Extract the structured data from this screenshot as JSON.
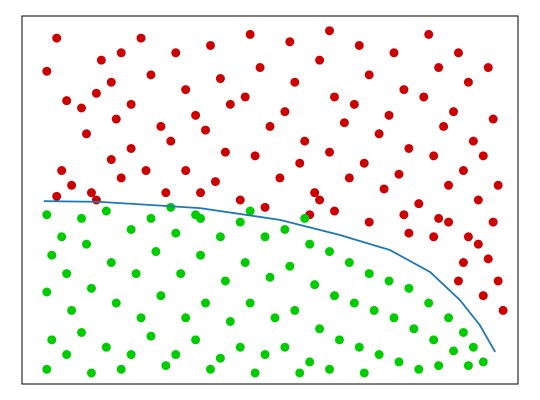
{
  "chart_data": {
    "type": "scatter",
    "xlim": [
      0,
      100
    ],
    "ylim": [
      0,
      100
    ],
    "series": [
      {
        "color": "#cc0000",
        "x": [
          5,
          7,
          12,
          9,
          13,
          8,
          10,
          7,
          16,
          18,
          20,
          15,
          19,
          22,
          18,
          20,
          24,
          26,
          22,
          28,
          25,
          29,
          31,
          33,
          35,
          30,
          33,
          36,
          38,
          40,
          42,
          37,
          41,
          39,
          44,
          46,
          48,
          45,
          50,
          47,
          52,
          49,
          54,
          55,
          53,
          57,
          56,
          59,
          58,
          62,
          60,
          63,
          65,
          62,
          66,
          63,
          68,
          70,
          67,
          72,
          69,
          73,
          70,
          75,
          77,
          74,
          78,
          76,
          80,
          78,
          82,
          84,
          81,
          85,
          83,
          86,
          84,
          88,
          90,
          87,
          91,
          89,
          92,
          90,
          94,
          95,
          93,
          96,
          95,
          94,
          96,
          92,
          89,
          97,
          93,
          86,
          88,
          15,
          14,
          60,
          77,
          83
        ],
        "values": [
          85,
          94,
          75,
          77,
          68,
          58,
          54,
          51,
          88,
          82,
          90,
          79,
          72,
          64,
          61,
          56,
          94,
          84,
          76,
          70,
          58,
          52,
          90,
          80,
          73,
          66,
          58,
          52,
          92,
          83,
          76,
          69,
          63,
          55,
          50,
          95,
          86,
          78,
          70,
          62,
          56,
          48,
          93,
          82,
          74,
          66,
          60,
          52,
          46,
          96,
          88,
          78,
          71,
          63,
          56,
          47,
          92,
          84,
          76,
          68,
          60,
          53,
          44,
          90,
          80,
          73,
          64,
          57,
          49,
          41,
          95,
          86,
          78,
          70,
          62,
          54,
          45,
          90,
          82,
          74,
          66,
          58,
          50,
          40,
          86,
          72,
          62,
          54,
          44,
          34,
          28,
          38,
          33,
          20,
          24,
          44,
          28,
          50,
          52,
          50,
          46,
          40
        ]
      },
      {
        "color": "#00cc00",
        "x": [
          5,
          6,
          5,
          6,
          5,
          8,
          9,
          10,
          9,
          12,
          13,
          14,
          12,
          14,
          17,
          18,
          19,
          17,
          20,
          22,
          23,
          24,
          22,
          26,
          27,
          28,
          26,
          29,
          31,
          32,
          33,
          31,
          35,
          36,
          37,
          35,
          38,
          40,
          41,
          42,
          40,
          44,
          45,
          46,
          44,
          47,
          49,
          50,
          51,
          49,
          53,
          54,
          55,
          53,
          56,
          58,
          59,
          60,
          58,
          62,
          63,
          64,
          62,
          66,
          67,
          68,
          70,
          71,
          72,
          69,
          74,
          75,
          76,
          78,
          79,
          80,
          82,
          83,
          84,
          86,
          87,
          89,
          90,
          91,
          93,
          57,
          46,
          30,
          36
        ],
        "values": [
          46,
          35,
          25,
          12,
          4,
          40,
          30,
          20,
          8,
          45,
          38,
          26,
          14,
          3,
          47,
          33,
          22,
          10,
          4,
          42,
          30,
          18,
          8,
          45,
          36,
          24,
          13,
          5,
          41,
          30,
          18,
          8,
          46,
          35,
          22,
          12,
          4,
          40,
          28,
          17,
          7,
          44,
          33,
          22,
          10,
          3,
          40,
          29,
          18,
          8,
          42,
          32,
          20,
          10,
          3,
          38,
          27,
          15,
          6,
          36,
          24,
          12,
          4,
          33,
          22,
          10,
          30,
          20,
          8,
          3,
          28,
          18,
          6,
          26,
          15,
          4,
          22,
          12,
          5,
          18,
          9,
          14,
          5,
          10,
          6,
          45,
          47,
          48,
          45
        ]
      }
    ],
    "curve": {
      "color": "#1f77b4",
      "x": [
        4.4,
        15.7,
        35.9,
        52,
        64.1,
        74.2,
        82.3,
        88.3,
        92.3,
        95.4
      ],
      "values": [
        49.7,
        49.5,
        47.8,
        44.6,
        40.5,
        36.4,
        30.4,
        22.8,
        16,
        8.7
      ]
    }
  }
}
